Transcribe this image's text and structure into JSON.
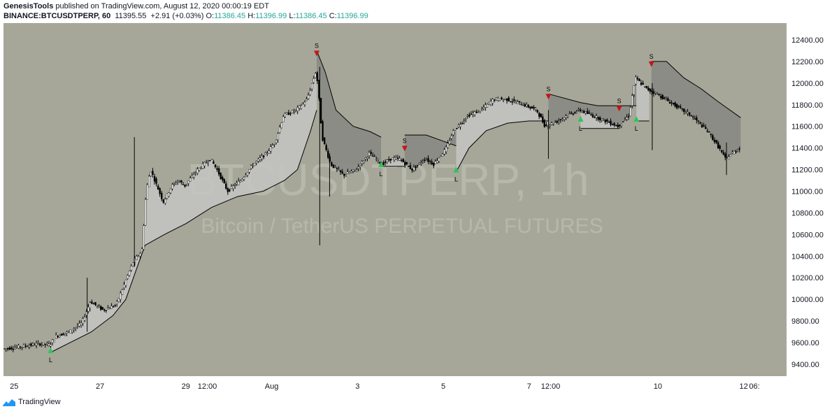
{
  "header": {
    "author": "GenesisTools",
    "published_text": "published on TradingView.com, August 12, 2020 00:00:19 EDT"
  },
  "ohlc": {
    "symbol": "BINANCE:BTCUSDTPERP, 60",
    "last": "11395.55",
    "change": "+2.91 (+0.03%)",
    "o_label": "O:",
    "o": "11386.45",
    "h_label": "H:",
    "h": "11396.99",
    "l_label": "L:",
    "l": "11386.45",
    "c_label": "C:",
    "c": "11396.99"
  },
  "watermark": {
    "symbol": "BTCUSDTPERP, 1h",
    "description": "Bitcoin / TetherUS PERPETUAL FUTURES"
  },
  "footer": {
    "brand": "TradingView"
  },
  "colors": {
    "plot_bg": "#a6a799",
    "price_axis_bg": "#ffffff",
    "band_long": "#c3c3c1",
    "band_short": "#898985",
    "candle_up": "#ffffff",
    "candle_down": "#000000",
    "signal_long": "#2fc55a",
    "signal_short": "#c01818",
    "watermark": "#b7b8ac",
    "brand_blue": "#2196f3"
  },
  "chart_data": {
    "type": "candlestick",
    "y_axis_ticks": [
      "12400.00",
      "12200.00",
      "12000.00",
      "11800.00",
      "11600.00",
      "11400.00",
      "11200.00",
      "11000.00",
      "10800.00",
      "10600.00",
      "10400.00",
      "10200.00",
      "10000.00",
      "9800.00",
      "9600.00",
      "9400.00"
    ],
    "ylim": [
      9290,
      12555
    ],
    "x_ticks": [
      {
        "label": "25",
        "x": 0.0
      },
      {
        "label": "27",
        "x": 2.0
      },
      {
        "label": "29",
        "x": 4.0
      },
      {
        "label": "12:00",
        "x": 4.5
      },
      {
        "label": "Aug",
        "x": 6.0
      },
      {
        "label": "3",
        "x": 8.0
      },
      {
        "label": "5",
        "x": 10.0
      },
      {
        "label": "7",
        "x": 12.0
      },
      {
        "label": "12:00",
        "x": 12.5
      },
      {
        "label": "10",
        "x": 15.0
      },
      {
        "label": "12",
        "x": 17.0
      },
      {
        "label": "06:",
        "x": 17.25
      }
    ],
    "xlim": [
      -0.25,
      18.0
    ],
    "price_path": [
      [
        -0.25,
        9540
      ],
      [
        0.3,
        9570
      ],
      [
        0.6,
        9590
      ],
      [
        0.85,
        9580
      ],
      [
        1.0,
        9660
      ],
      [
        1.3,
        9700
      ],
      [
        1.6,
        9780
      ],
      [
        1.8,
        9980
      ],
      [
        2.1,
        9900
      ],
      [
        2.4,
        9950
      ],
      [
        2.6,
        10150
      ],
      [
        2.8,
        10350
      ],
      [
        3.0,
        10450
      ],
      [
        3.1,
        11000
      ],
      [
        3.2,
        11200
      ],
      [
        3.35,
        11050
      ],
      [
        3.5,
        10900
      ],
      [
        3.7,
        11050
      ],
      [
        3.85,
        11100
      ],
      [
        4.0,
        11050
      ],
      [
        4.3,
        11200
      ],
      [
        4.6,
        11300
      ],
      [
        4.75,
        11200
      ],
      [
        5.0,
        11000
      ],
      [
        5.3,
        11100
      ],
      [
        5.6,
        11250
      ],
      [
        5.9,
        11350
      ],
      [
        6.1,
        11450
      ],
      [
        6.3,
        11700
      ],
      [
        6.6,
        11750
      ],
      [
        6.85,
        11850
      ],
      [
        7.05,
        12100
      ],
      [
        7.1,
        12000
      ],
      [
        7.2,
        11500
      ],
      [
        7.4,
        11250
      ],
      [
        7.7,
        11150
      ],
      [
        8.0,
        11200
      ],
      [
        8.3,
        11350
      ],
      [
        8.6,
        11250
      ],
      [
        8.8,
        11300
      ],
      [
        9.0,
        11300
      ],
      [
        9.3,
        11200
      ],
      [
        9.6,
        11300
      ],
      [
        9.8,
        11250
      ],
      [
        10.1,
        11400
      ],
      [
        10.25,
        11550
      ],
      [
        10.6,
        11700
      ],
      [
        10.9,
        11750
      ],
      [
        11.2,
        11850
      ],
      [
        11.5,
        11850
      ],
      [
        11.9,
        11800
      ],
      [
        12.2,
        11750
      ],
      [
        12.4,
        11600
      ],
      [
        12.7,
        11650
      ],
      [
        12.9,
        11700
      ],
      [
        13.2,
        11750
      ],
      [
        13.5,
        11700
      ],
      [
        13.8,
        11650
      ],
      [
        14.1,
        11600
      ],
      [
        14.35,
        11700
      ],
      [
        14.5,
        12050
      ],
      [
        14.75,
        11950
      ],
      [
        15.0,
        11900
      ],
      [
        15.4,
        11800
      ],
      [
        15.8,
        11700
      ],
      [
        16.2,
        11550
      ],
      [
        16.45,
        11400
      ],
      [
        16.6,
        11300
      ],
      [
        16.75,
        11350
      ],
      [
        16.93,
        11400
      ]
    ],
    "wick_spikes": [
      {
        "x": 2.8,
        "low": 10300,
        "high": 11500
      },
      {
        "x": 1.7,
        "low": 9700,
        "high": 10200
      },
      {
        "x": 7.12,
        "low": 10500,
        "high": 12150
      },
      {
        "x": 7.35,
        "low": 10950,
        "high": 11350
      },
      {
        "x": 12.45,
        "low": 11300,
        "high": 11750
      },
      {
        "x": 14.87,
        "low": 11380,
        "high": 12000
      },
      {
        "x": 16.6,
        "low": 11150,
        "high": 11450
      }
    ],
    "trail_stop_segments": [
      {
        "side": "long",
        "points": [
          [
            0.85,
            9510
          ],
          [
            1.3,
            9600
          ],
          [
            1.8,
            9700
          ],
          [
            2.3,
            9850
          ],
          [
            2.6,
            10000
          ],
          [
            2.85,
            10280
          ],
          [
            3.05,
            10500
          ],
          [
            3.5,
            10600
          ],
          [
            4.0,
            10700
          ],
          [
            4.6,
            10850
          ],
          [
            5.2,
            10950
          ],
          [
            5.8,
            11000
          ],
          [
            6.3,
            11100
          ],
          [
            6.6,
            11200
          ],
          [
            6.9,
            11550
          ],
          [
            7.05,
            11750
          ]
        ]
      },
      {
        "side": "short",
        "points": [
          [
            7.05,
            12300
          ],
          [
            7.25,
            12100
          ],
          [
            7.5,
            11750
          ],
          [
            7.9,
            11600
          ],
          [
            8.3,
            11550
          ],
          [
            8.55,
            11500
          ]
        ]
      },
      {
        "side": "long",
        "points": [
          [
            8.55,
            11230
          ],
          [
            9.1,
            11230
          ]
        ]
      },
      {
        "side": "short",
        "points": [
          [
            9.1,
            11520
          ],
          [
            9.6,
            11520
          ],
          [
            10.3,
            11420
          ]
        ]
      },
      {
        "side": "long",
        "points": [
          [
            10.3,
            11180
          ],
          [
            10.6,
            11400
          ],
          [
            11.0,
            11560
          ],
          [
            11.5,
            11630
          ],
          [
            12.0,
            11650
          ],
          [
            12.45,
            11650
          ]
        ]
      },
      {
        "side": "short",
        "points": [
          [
            12.45,
            11900
          ],
          [
            13.2,
            11820
          ],
          [
            13.6,
            11790
          ],
          [
            14.1,
            11790
          ]
        ]
      },
      {
        "side": "long",
        "points": [
          [
            13.2,
            11580
          ],
          [
            14.1,
            11580
          ]
        ]
      },
      {
        "side": "short",
        "points": [
          [
            14.1,
            11790
          ],
          [
            14.5,
            11790
          ]
        ]
      },
      {
        "side": "long",
        "points": [
          [
            14.5,
            11650
          ],
          [
            14.8,
            11650
          ]
        ]
      },
      {
        "side": "short",
        "points": [
          [
            14.85,
            12200
          ],
          [
            15.2,
            12200
          ],
          [
            15.6,
            12050
          ],
          [
            16.0,
            11950
          ],
          [
            16.4,
            11830
          ],
          [
            16.93,
            11680
          ]
        ]
      }
    ],
    "signals": [
      {
        "side": "long",
        "x": 0.85,
        "price": 9510,
        "label": "L"
      },
      {
        "side": "short",
        "x": 7.05,
        "price": 12300,
        "label": "S"
      },
      {
        "side": "long",
        "x": 8.55,
        "price": 11230,
        "label": "L"
      },
      {
        "side": "short",
        "x": 9.1,
        "price": 11420,
        "label": "S"
      },
      {
        "side": "long",
        "x": 10.3,
        "price": 11180,
        "label": "L"
      },
      {
        "side": "short",
        "x": 12.45,
        "price": 11900,
        "label": "S"
      },
      {
        "side": "long",
        "x": 13.2,
        "price": 11650,
        "label": "L"
      },
      {
        "side": "short",
        "x": 14.1,
        "price": 11790,
        "label": "S"
      },
      {
        "side": "long",
        "x": 14.5,
        "price": 11650,
        "label": "L"
      },
      {
        "side": "short",
        "x": 14.85,
        "price": 12200,
        "label": "S"
      }
    ]
  }
}
